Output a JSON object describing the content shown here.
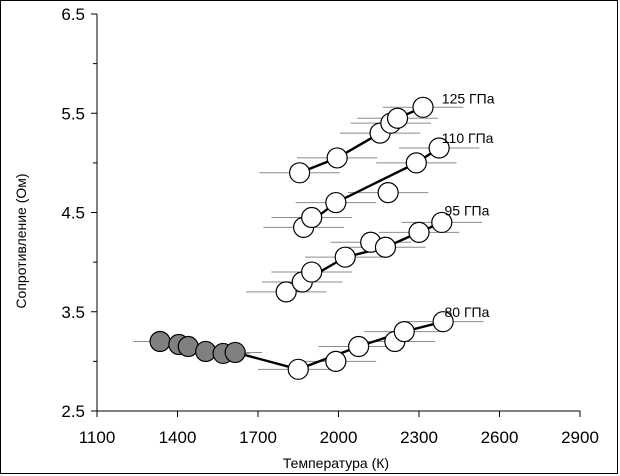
{
  "chart_data": {
    "type": "scatter",
    "title": "",
    "xlabel": "Температура (К)",
    "ylabel": "Сопротивление (Ом)",
    "xlim": [
      1100,
      2900
    ],
    "ylim": [
      2.5,
      6.5
    ],
    "x_ticks": [
      "1100",
      "1400",
      "1700",
      "2000",
      "2300",
      "2600",
      "2900"
    ],
    "y_ticks": [
      "2.5",
      "3.5",
      "4.5",
      "5.5",
      "6.5"
    ],
    "grid": false,
    "series": [
      {
        "name": "125 ГПа",
        "xerr": 150,
        "points": [
          [
            1855,
            4.9
          ],
          [
            1995,
            5.05
          ],
          [
            2155,
            5.3
          ],
          [
            2195,
            5.4
          ],
          [
            2220,
            5.45
          ],
          [
            2315,
            5.56
          ]
        ],
        "line": [
          [
            1855,
            4.9
          ],
          [
            1995,
            5.05
          ],
          [
            2155,
            5.3
          ],
          [
            2220,
            5.45
          ],
          [
            2315,
            5.56
          ]
        ],
        "marker": "open"
      },
      {
        "name": "110 ГПа",
        "xerr": 150,
        "points": [
          [
            1870,
            4.35
          ],
          [
            1900,
            4.45
          ],
          [
            1990,
            4.6
          ],
          [
            2185,
            4.7
          ],
          [
            2290,
            5.0
          ],
          [
            2375,
            5.15
          ]
        ],
        "line": [
          [
            1870,
            4.35
          ],
          [
            1990,
            4.6
          ],
          [
            2290,
            5.0
          ],
          [
            2375,
            5.15
          ]
        ],
        "marker": "open"
      },
      {
        "name": "95 ГПа",
        "xerr": 150,
        "points": [
          [
            1805,
            3.7
          ],
          [
            1865,
            3.8
          ],
          [
            1900,
            3.9
          ],
          [
            2025,
            4.05
          ],
          [
            2120,
            4.2
          ],
          [
            2175,
            4.15
          ],
          [
            2300,
            4.3
          ],
          [
            2385,
            4.4
          ]
        ],
        "line": [
          [
            1865,
            3.8
          ],
          [
            2025,
            4.05
          ],
          [
            2175,
            4.15
          ],
          [
            2300,
            4.3
          ],
          [
            2385,
            4.4
          ]
        ],
        "marker": "open"
      },
      {
        "name": "80 ГПа",
        "xerr": 150,
        "points": [
          [
            1850,
            2.92
          ],
          [
            1990,
            3.0
          ],
          [
            2075,
            3.15
          ],
          [
            2210,
            3.2
          ],
          [
            2245,
            3.3
          ],
          [
            2390,
            3.4
          ]
        ],
        "line": [
          [
            1850,
            2.92
          ],
          [
            2075,
            3.15
          ],
          [
            2245,
            3.3
          ],
          [
            2390,
            3.4
          ]
        ],
        "marker": "open"
      },
      {
        "name": "",
        "xerr": 100,
        "points": [
          [
            1335,
            3.2
          ],
          [
            1405,
            3.17
          ],
          [
            1440,
            3.15
          ],
          [
            1505,
            3.1
          ],
          [
            1570,
            3.08
          ],
          [
            1615,
            3.09
          ]
        ],
        "line": [
          [
            1335,
            3.2
          ],
          [
            1615,
            3.09
          ],
          [
            1850,
            2.92
          ]
        ],
        "marker": "filled"
      }
    ],
    "labels": [
      {
        "text": "125 ГПа",
        "x": 2385,
        "y": 5.65
      },
      {
        "text": "110 ГПа",
        "x": 2385,
        "y": 5.25
      },
      {
        "text": "95 ГПа",
        "x": 2395,
        "y": 4.52
      },
      {
        "text": "80 ГПа",
        "x": 2395,
        "y": 3.5
      }
    ]
  },
  "colors": {
    "open_fill": "#ffffff",
    "filled_fill": "#808080",
    "marker_stroke": "#000000",
    "line": "#000000",
    "errorbar": "#8c8c8c"
  }
}
